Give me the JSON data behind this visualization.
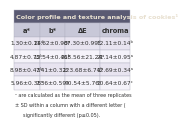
{
  "title": "Color profile and texture analysis of cookies¹",
  "headers": [
    "a*",
    "b*",
    "ΔE",
    "chroma"
  ],
  "rows": [
    [
      "1.30±0.14ᵈ",
      "21.62±0.90ᵃ",
      "87.30±0.99ᵈ",
      "12.11±0.14ᵇ"
    ],
    [
      "4.87±0.75ᵇ",
      "12.54±0.41ᵇ",
      "268.56±21.24ᵃ",
      "21.14±0.95ᵃ"
    ],
    [
      "8.98±0.43ᵇ",
      "7.41±0.32ᶜ",
      "123.68±6.74ᵇ",
      "12.69±0.34ᵃ"
    ],
    [
      "5.96±0.38ᶜ",
      "7.36±0.59ᶜ",
      "90.54±5.76ᶜ",
      "10.64±0.67ᶜ"
    ]
  ],
  "footnote1": "¹ are calculated as the mean of three replicates",
  "footnote2": "± SD within a column with a different letter (",
  "footnote3": "significantly different (p≤0.05).",
  "title_bg": "#5a5a72",
  "title_text_color": "#e8e0d0",
  "header_bg": "#c8c8d8",
  "header_text_color": "#303030",
  "row0_bg": "#e8e4f0",
  "row1_bg": "#f5f3fa",
  "row2_bg": "#e8e4f0",
  "row3_bg": "#f5f3fa",
  "border_color": "#b0b0c0",
  "footnote_color": "#303030",
  "font_size": 4.2,
  "header_font_size": 4.8,
  "title_font_size": 4.6,
  "footnote_font_size": 3.5
}
